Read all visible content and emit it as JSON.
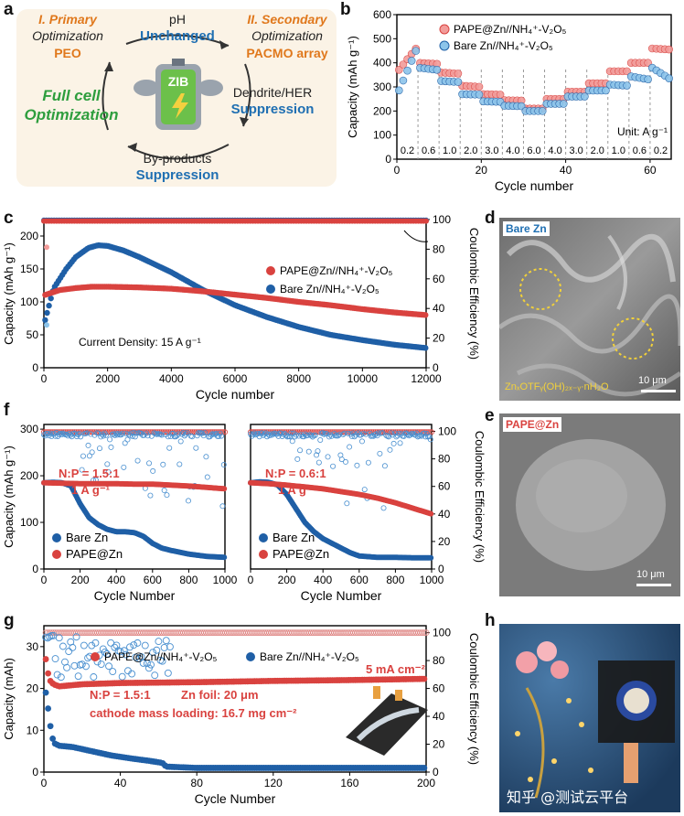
{
  "panels": {
    "a": "a",
    "b": "b",
    "c": "c",
    "d": "d",
    "e": "e",
    "f": "f",
    "g": "g",
    "h": "h"
  },
  "schematic": {
    "primary_label": "I. Primary",
    "primary_sub": "Optimization",
    "primary_item": "PEO",
    "secondary_label": "II. Secondary",
    "secondary_sub": "Optimization",
    "secondary_item": "PACMO array",
    "ph": "pH",
    "ph_state": "Unchanged",
    "dendrite": "Dendrite/HER",
    "dendrite_state": "Suppression",
    "byproducts": "By-products",
    "byproducts_state": "Suppression",
    "full_cell_1": "Full cell",
    "full_cell_2": "Optimization",
    "battery_label": "ZIB",
    "colors": {
      "orange": "#e0781c",
      "blue": "#1f6fb2",
      "green": "#2e9e3e",
      "bg": "#fbf3e6"
    }
  },
  "sem": {
    "d_label": "Bare Zn",
    "d_caption": "ZnₓOTFᵧ(OH)₂ₓ₋ᵧ·nH₂O",
    "d_scale": "10 μm",
    "e_label": "PAPE@Zn",
    "e_scale": "10 μm"
  },
  "photo_h": {
    "watermark": "知乎 @测试云平台"
  },
  "colors": {
    "red": "#d9423f",
    "red_fill": "#f29c9a",
    "blue": "#1f5fa6",
    "blue_fill": "#8cc4ea"
  },
  "chart_data": [
    {
      "id": "b",
      "type": "scatter",
      "xlabel": "Cycle number",
      "ylabel": "Capacity (mAh g⁻¹)",
      "xlim": [
        0,
        65
      ],
      "ylim": [
        0,
        600
      ],
      "xticks": [
        0,
        20,
        40,
        60
      ],
      "yticks": [
        0,
        100,
        200,
        300,
        400,
        500,
        600
      ],
      "rate_labels": [
        "0.2",
        "0.6",
        "1.0",
        "2.0",
        "3.0",
        "4.0",
        "6.0",
        "4.0",
        "3.0",
        "2.0",
        "1.0",
        "0.6",
        "0.2"
      ],
      "rate_unit": "Unit: A g⁻¹",
      "legend": [
        "PAPE@Zn//NH₄⁺-V₂O₅",
        "Bare Zn//NH₄⁺-V₂O₅"
      ],
      "series": [
        {
          "name": "PAPE@Zn//NH₄⁺-V₂O₅",
          "segments": [
            [
              0,
              5,
              360,
              470
            ],
            [
              5,
              10,
              400,
              395
            ],
            [
              10,
              15,
              360,
              355
            ],
            [
              15,
              20,
              305,
              300
            ],
            [
              20,
              25,
              270,
              268
            ],
            [
              25,
              30,
              245,
              243
            ],
            [
              30,
              35,
              210,
              210
            ],
            [
              35,
              40,
              250,
              250
            ],
            [
              40,
              45,
              280,
              280
            ],
            [
              45,
              50,
              315,
              315
            ],
            [
              50,
              55,
              365,
              365
            ],
            [
              55,
              60,
              400,
              400
            ],
            [
              60,
              65,
              460,
              455
            ]
          ]
        },
        {
          "name": "Bare Zn//NH₄⁺-V₂O₅",
          "segments": [
            [
              0,
              5,
              265,
              470
            ],
            [
              5,
              10,
              380,
              370
            ],
            [
              10,
              15,
              325,
              320
            ],
            [
              15,
              20,
              270,
              268
            ],
            [
              20,
              25,
              240,
              238
            ],
            [
              25,
              30,
              222,
              220
            ],
            [
              30,
              35,
              200,
              200
            ],
            [
              35,
              40,
              230,
              230
            ],
            [
              40,
              45,
              260,
              260
            ],
            [
              45,
              50,
              285,
              285
            ],
            [
              50,
              55,
              310,
              305
            ],
            [
              55,
              60,
              345,
              330
            ],
            [
              60,
              65,
              385,
              330
            ]
          ]
        }
      ]
    },
    {
      "id": "c",
      "type": "scatter",
      "xlabel": "Cycle number",
      "ylabel": "Capacity (mAh g⁻¹)",
      "y2label": "Coulombic Efficiency (%)",
      "xlim": [
        0,
        12000
      ],
      "ylim": [
        0,
        225
      ],
      "y2lim": [
        0,
        100
      ],
      "xticks": [
        0,
        2000,
        4000,
        6000,
        8000,
        10000,
        12000
      ],
      "yticks": [
        0,
        50,
        100,
        150,
        200
      ],
      "y2ticks": [
        0,
        20,
        40,
        60,
        80,
        100
      ],
      "annotation": "Current Density: 15 A g⁻¹",
      "legend": [
        "PAPE@Zn//NH₄⁺-V₂O₅",
        "Bare Zn//NH₄⁺-V₂O₅"
      ],
      "series": [
        {
          "name": "PAPE@Zn//NH₄⁺-V₂O₅",
          "x": [
            0,
            500,
            1000,
            1500,
            2000,
            3000,
            4000,
            5000,
            6000,
            7000,
            8000,
            9000,
            10000,
            11000,
            12000
          ],
          "y": [
            110,
            118,
            121,
            123,
            123,
            122,
            120,
            116,
            111,
            106,
            100,
            95,
            89,
            84,
            80
          ]
        },
        {
          "name": "Bare Zn//NH₄⁺-V₂O₅",
          "x": [
            0,
            300,
            700,
            1000,
            1400,
            1700,
            2000,
            2500,
            3000,
            4000,
            5000,
            6000,
            7000,
            8000,
            9000,
            10000,
            11000,
            12000
          ],
          "y": [
            65,
            120,
            150,
            168,
            182,
            186,
            185,
            178,
            168,
            145,
            118,
            95,
            77,
            62,
            50,
            42,
            35,
            30
          ]
        },
        {
          "name": "CE PAPE",
          "ce": 99
        },
        {
          "name": "CE Bare",
          "ce": 99
        }
      ]
    },
    {
      "id": "f1",
      "type": "scatter",
      "xlabel": "Cycle Number",
      "ylabel": "Capacity (mAh g⁻¹)",
      "xlim": [
        0,
        1000
      ],
      "ylim": [
        0,
        310
      ],
      "xticks": [
        0,
        200,
        400,
        600,
        800,
        1000
      ],
      "yticks": [
        0,
        100,
        200,
        300
      ],
      "annotation_np": "N:P = 1.5:1",
      "annotation_rate": "1 A g⁻¹",
      "legend": [
        "Bare Zn",
        "PAPE@Zn"
      ],
      "series": [
        {
          "name": "Bare Zn",
          "x": [
            0,
            50,
            100,
            150,
            200,
            250,
            300,
            350,
            400,
            450,
            500,
            550,
            600,
            650,
            700,
            800,
            900,
            1000
          ],
          "y": [
            185,
            186,
            185,
            178,
            140,
            110,
            95,
            85,
            80,
            80,
            78,
            70,
            55,
            45,
            40,
            32,
            27,
            25
          ]
        },
        {
          "name": "PAPE@Zn",
          "x": [
            0,
            100,
            200,
            300,
            400,
            500,
            600,
            700,
            800,
            900,
            1000
          ],
          "y": [
            185,
            184,
            183,
            183,
            183,
            182,
            182,
            180,
            178,
            175,
            172
          ]
        }
      ]
    },
    {
      "id": "f2",
      "type": "scatter",
      "xlabel": "Cycle Number",
      "y2label": "Coulombic Efficiency (%)",
      "xlim": [
        0,
        1000
      ],
      "ylim": [
        0,
        310
      ],
      "y2lim": [
        0,
        105
      ],
      "xticks": [
        0,
        200,
        400,
        600,
        800,
        1000
      ],
      "y2ticks": [
        0,
        20,
        40,
        60,
        80,
        100
      ],
      "annotation_np": "N:P = 0.6:1",
      "annotation_rate": "1 A g⁻¹",
      "legend": [
        "Bare Zn",
        "PAPE@Zn"
      ],
      "series": [
        {
          "name": "Bare Zn",
          "x": [
            0,
            50,
            100,
            150,
            200,
            250,
            300,
            350,
            400,
            450,
            500,
            550,
            600,
            700,
            800,
            900,
            1000
          ],
          "y": [
            185,
            187,
            186,
            180,
            160,
            130,
            100,
            80,
            65,
            55,
            45,
            35,
            28,
            25,
            25,
            24,
            24
          ]
        },
        {
          "name": "PAPE@Zn",
          "x": [
            0,
            100,
            200,
            300,
            400,
            500,
            600,
            700,
            800,
            900,
            1000
          ],
          "y": [
            185,
            183,
            180,
            176,
            172,
            166,
            160,
            152,
            142,
            130,
            118
          ]
        }
      ]
    },
    {
      "id": "g",
      "type": "scatter",
      "xlabel": "Cycle Number",
      "ylabel": "Capacity (mAh)",
      "y2label": "Coulombic Efficiency (%)",
      "xlim": [
        0,
        200
      ],
      "ylim": [
        0,
        35
      ],
      "y2lim": [
        0,
        105
      ],
      "xticks": [
        0,
        40,
        80,
        120,
        160,
        200
      ],
      "yticks": [
        0,
        10,
        20,
        30
      ],
      "y2ticks": [
        0,
        20,
        40,
        60,
        80,
        100
      ],
      "annotation_current": "5 mA cm⁻²",
      "annotation_np": "N:P = 1.5:1",
      "annotation_foil": "Zn foil: 20 μm",
      "annotation_loading": "cathode mass loading: 16.7 mg cm⁻²",
      "legend": [
        "PAPE@Zn//NH₄⁺-V₂O₅",
        "Bare Zn//NH₄⁺-V₂O₅"
      ],
      "series": [
        {
          "name": "PAPE@Zn//NH₄⁺-V₂O₅",
          "x": [
            1,
            2,
            3,
            5,
            8,
            20,
            40,
            80,
            120,
            160,
            200
          ],
          "y": [
            27,
            24,
            22,
            21,
            20.5,
            21,
            21.3,
            21.5,
            21.8,
            22,
            22.3
          ]
        },
        {
          "name": "Bare Zn//NH₄⁺-V₂O₅",
          "x": [
            1,
            2,
            3,
            5,
            8,
            15,
            25,
            35,
            45,
            55,
            62,
            64,
            80,
            120,
            160,
            200
          ],
          "y": [
            19,
            16,
            12,
            7,
            6.3,
            6,
            5,
            4,
            3.3,
            2.7,
            2.2,
            1.3,
            1,
            1,
            1,
            1
          ]
        }
      ]
    }
  ]
}
